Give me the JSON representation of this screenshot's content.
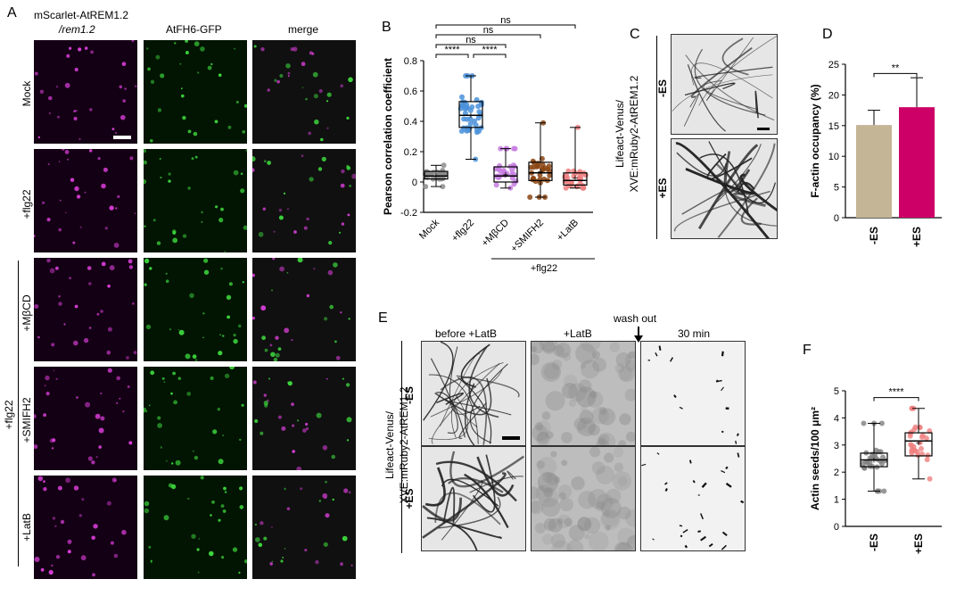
{
  "panel_letters": {
    "a": "A",
    "b": "B",
    "c": "C",
    "d": "D",
    "e": "E",
    "f": "F"
  },
  "panelA": {
    "title_line1": "mScarlet-AtREM1.2",
    "title_line2": "/rem1.2",
    "col_gfp": "AtFH6-GFP",
    "col_merge": "merge",
    "rows": [
      "Mock",
      "+flg22",
      "+MβCD",
      "+SMIFH2",
      "+LatB"
    ],
    "group_label": "+flg22"
  },
  "panelC": {
    "ylabel_line1": "Lifeact-Venus/",
    "ylabel_line2": "XVE:mRuby2-AtREM1.2",
    "rows": [
      "-ES",
      "+ES"
    ]
  },
  "panelE": {
    "ylabel_line1": "Lifeact-Venus/",
    "ylabel_line2": "XVE:mRuby2-AtREM1.2",
    "cols": [
      "before +LatB",
      "+LatB",
      "30 min"
    ],
    "washout": "wash out",
    "rows": [
      "-ES",
      "+ES"
    ]
  },
  "chart_data": [
    {
      "panel": "B",
      "type": "box",
      "ylabel": "Pearson correlation coefficient",
      "ylim": [
        -0.2,
        0.8
      ],
      "yticks": [
        "-0.2",
        "0",
        "0.2",
        "0.4",
        "0.6",
        "0.8"
      ],
      "categories": [
        "Mock",
        "+flg22",
        "+MβCD",
        "+SMIFH2",
        "+LatB"
      ],
      "group_label": "+flg22",
      "colors": [
        "#8c8c8c",
        "#4a90d9",
        "#c77ce0",
        "#8b4513",
        "#f08080"
      ],
      "boxes": [
        {
          "min": -0.03,
          "q1": 0.02,
          "median": 0.04,
          "q3": 0.07,
          "max": 0.11,
          "mean": 0.045
        },
        {
          "min": 0.15,
          "q1": 0.36,
          "median": 0.44,
          "q3": 0.53,
          "max": 0.7,
          "mean": 0.44
        },
        {
          "min": -0.04,
          "q1": 0.0,
          "median": 0.04,
          "q3": 0.1,
          "max": 0.22,
          "mean": 0.05
        },
        {
          "min": -0.1,
          "q1": 0.01,
          "median": 0.06,
          "q3": 0.13,
          "max": 0.39,
          "mean": 0.07
        },
        {
          "min": -0.04,
          "q1": -0.02,
          "median": 0.01,
          "q3": 0.06,
          "max": 0.36,
          "mean": 0.03
        }
      ],
      "significance": [
        {
          "from": 0,
          "to": 1,
          "label": "****"
        },
        {
          "from": 1,
          "to": 2,
          "label": "****"
        },
        {
          "from": 0,
          "to": 2,
          "label": "ns"
        },
        {
          "from": 0,
          "to": 3,
          "label": "ns"
        },
        {
          "from": 0,
          "to": 4,
          "label": "ns"
        }
      ]
    },
    {
      "panel": "D",
      "type": "bar",
      "ylabel": "F-actin occupancy (%)",
      "ylim": [
        0,
        25
      ],
      "yticks": [
        "0",
        "5",
        "10",
        "15",
        "20",
        "25"
      ],
      "categories": [
        "-ES",
        "+ES"
      ],
      "values": [
        15.1,
        18.0
      ],
      "errors": [
        2.4,
        4.8
      ],
      "colors": [
        "#c4b596",
        "#cc0066"
      ],
      "significance": "**"
    },
    {
      "panel": "F",
      "type": "box",
      "ylabel": "Actin seeds/100 μm²",
      "ylim": [
        0,
        5
      ],
      "yticks": [
        "0",
        "1",
        "2",
        "3",
        "4",
        "5"
      ],
      "categories": [
        "-ES",
        "+ES"
      ],
      "colors": [
        "#7f7f7f",
        "#f08080"
      ],
      "boxes": [
        {
          "min": 1.3,
          "q1": 2.2,
          "median": 2.45,
          "q3": 2.7,
          "max": 3.8,
          "mean": 2.45
        },
        {
          "min": 1.75,
          "q1": 2.6,
          "median": 3.15,
          "q3": 3.45,
          "max": 4.35,
          "mean": 3.1
        }
      ],
      "significance": "****"
    }
  ]
}
